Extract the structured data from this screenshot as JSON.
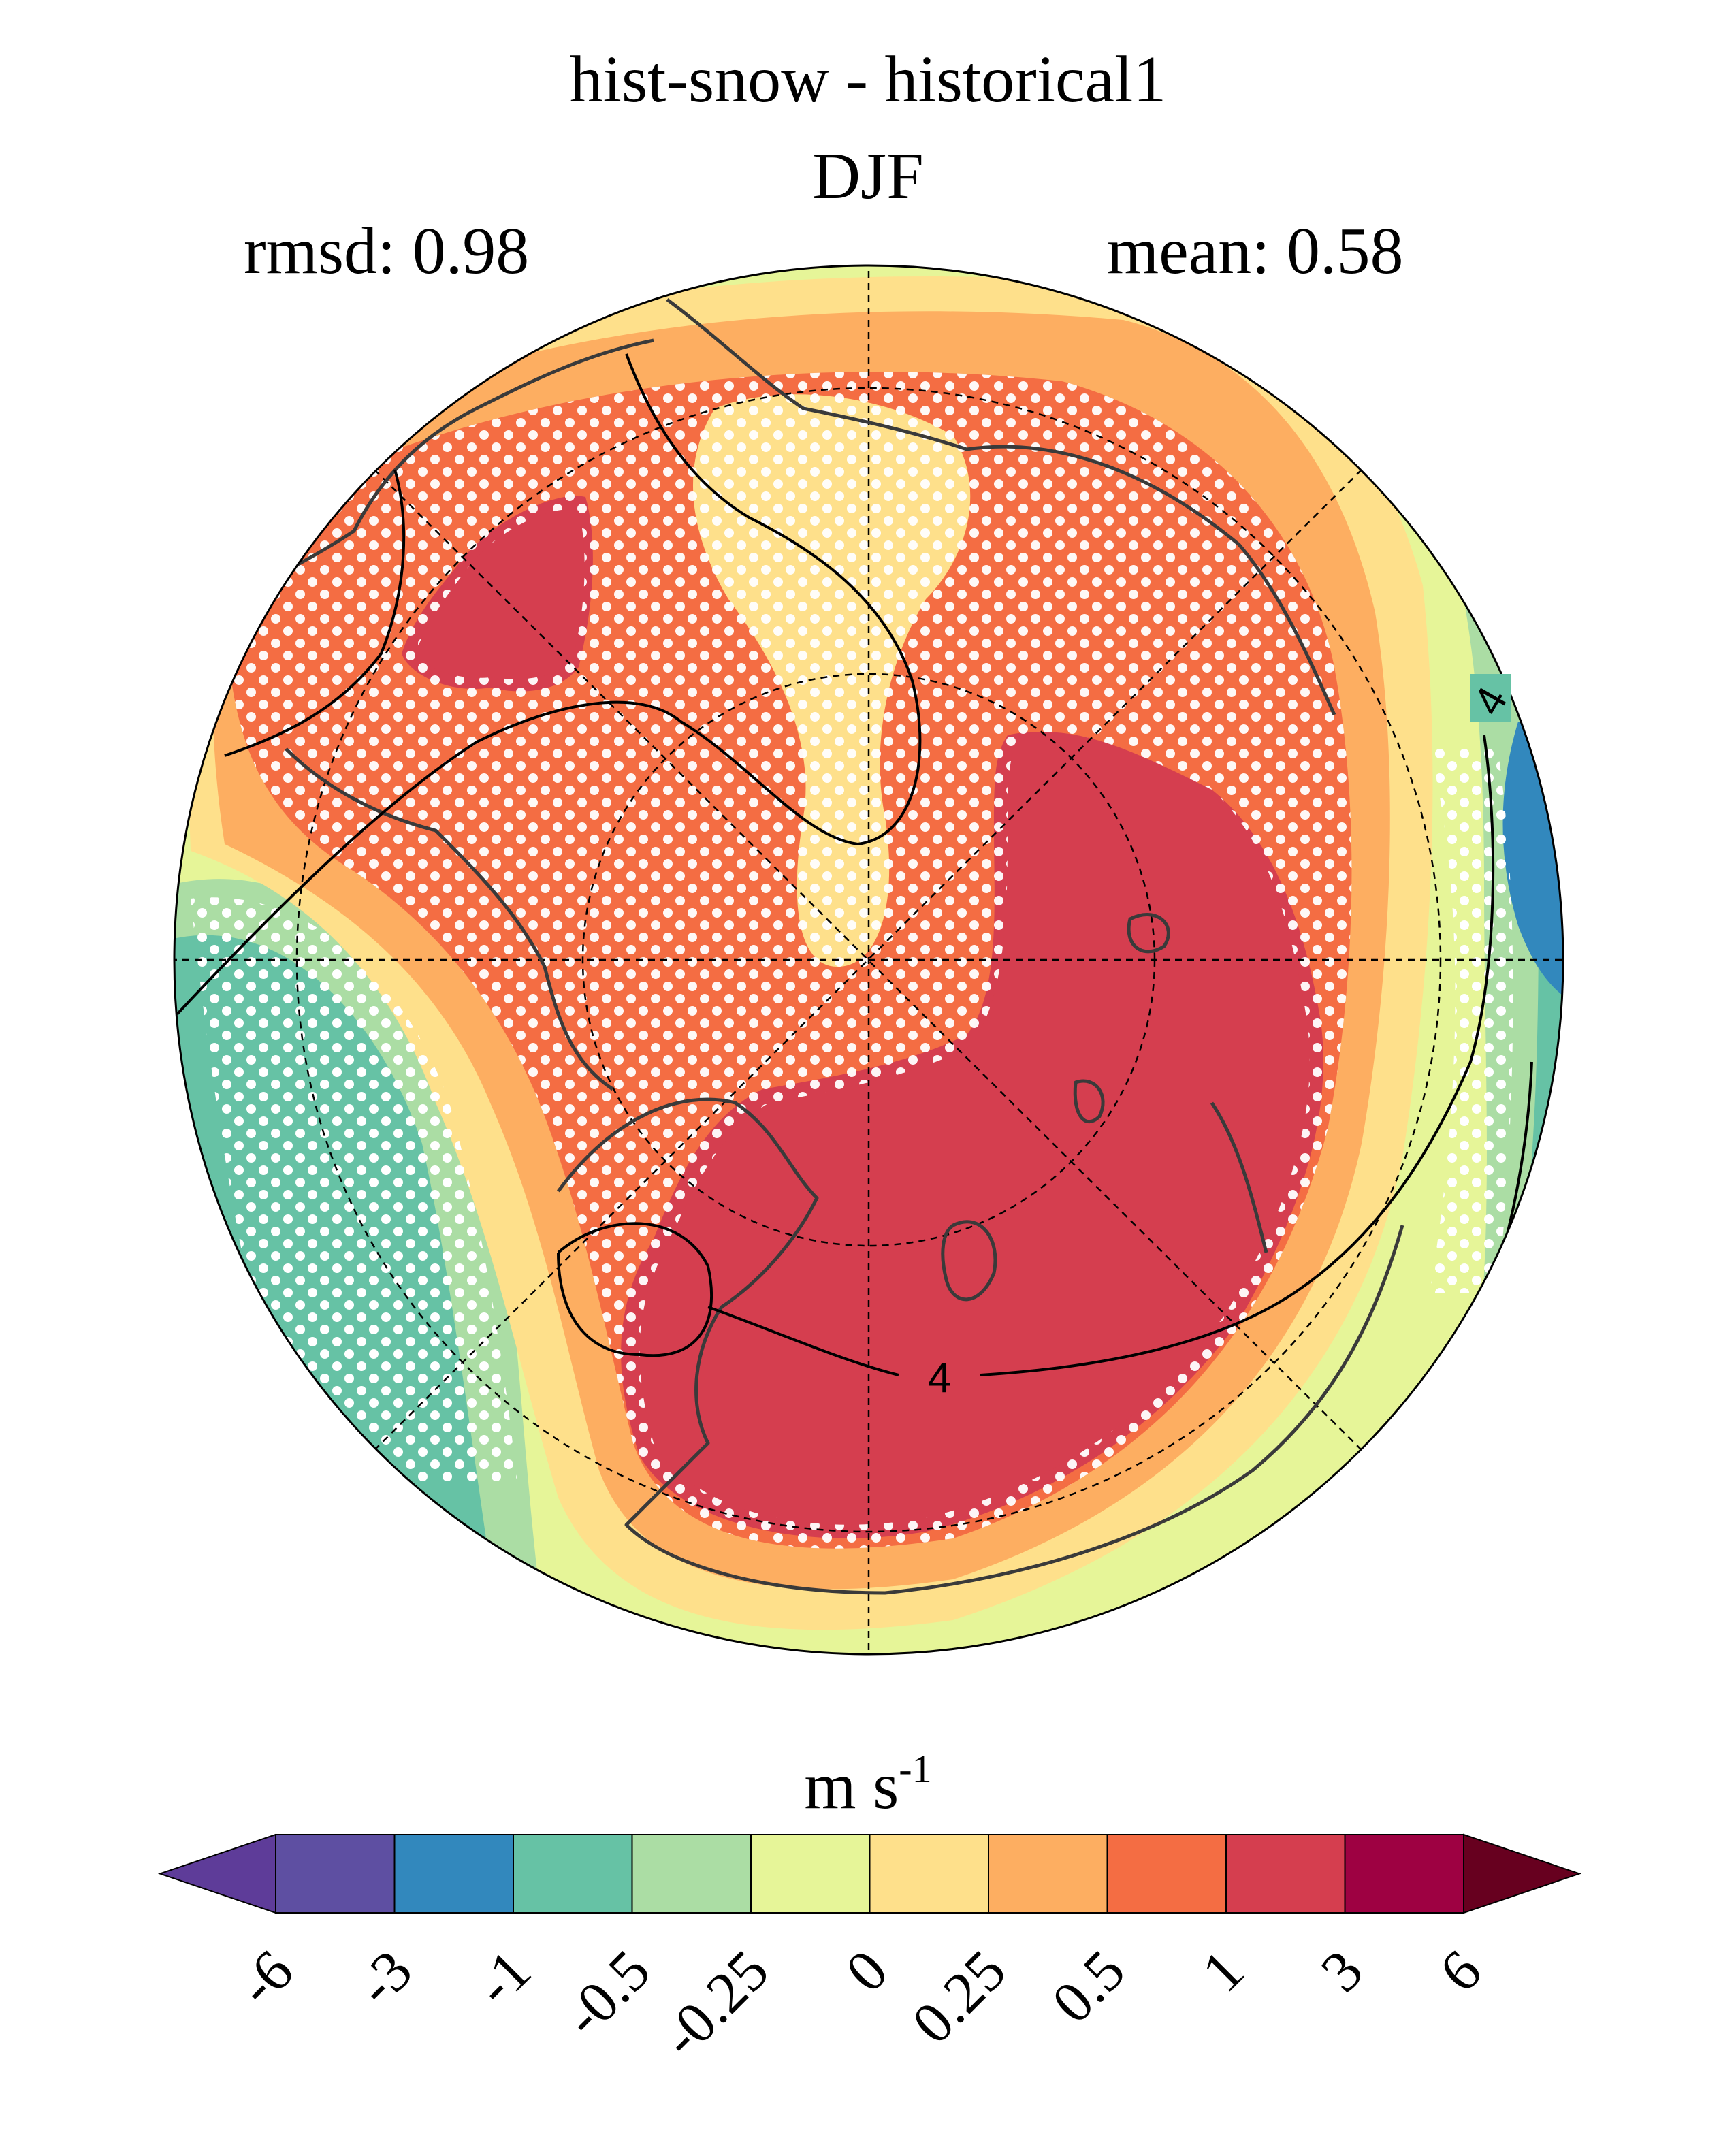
{
  "title": "hist-snow - historical1",
  "season": "DJF",
  "stats": {
    "rmsd": "rmsd: 0.98",
    "mean": "mean: 0.58"
  },
  "colorbar": {
    "unit": "m s",
    "unit_exp": "-1",
    "levels": [
      "-6",
      "-3",
      "-1",
      "-0.5",
      "-0.25",
      "0",
      "0.25",
      "0.5",
      "1",
      "3",
      "6"
    ],
    "colors": [
      "#5e3c99",
      "#5e4fa2",
      "#3288bd",
      "#66c2a5",
      "#abdda4",
      "#e6f598",
      "#fee08b",
      "#fdae61",
      "#f46d43",
      "#d53e4f",
      "#9e0142",
      "#67001f"
    ]
  },
  "map": {
    "projection": "north-polar-stereographic",
    "contour_label": "4",
    "stippling": "white dots mark significant difference",
    "palette": {
      "strong_pos": "#d53e4f",
      "pos": "#f46d43",
      "weak_pos": "#fdae61",
      "small_pos": "#fee08b",
      "small_neg": "#e6f598",
      "neg": "#abdda4",
      "mid_neg": "#66c2a5",
      "strong_neg": "#3288bd"
    }
  }
}
